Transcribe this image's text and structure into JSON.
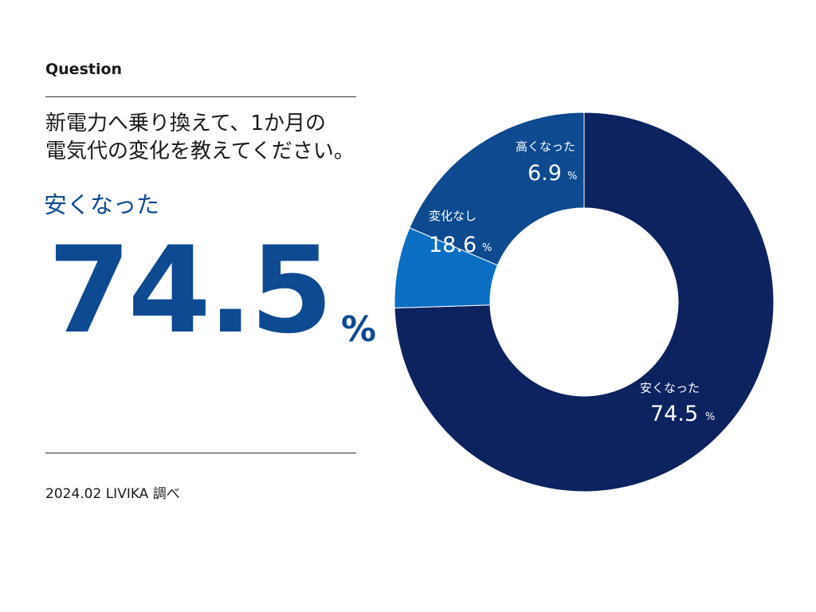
{
  "header": {
    "label": "Question",
    "question_line1": "新電力へ乗り換えて、1か月の",
    "question_line2": "電気代の変化を教えてください。"
  },
  "highlight": {
    "label": "安くなった",
    "value": "74.5",
    "unit": "%"
  },
  "footer": {
    "source": "2024.02 LIVIKA 調べ"
  },
  "chart_data": {
    "type": "pie",
    "donut": true,
    "categories": [
      "安くなった",
      "高くなった",
      "変化なし"
    ],
    "values": [
      74.5,
      6.9,
      18.6
    ],
    "value_labels": [
      "74.5",
      "6.9",
      "18.6"
    ],
    "unit": "%",
    "colors": [
      "#0c2360",
      "#0a6fc2",
      "#0d4a8f"
    ]
  }
}
